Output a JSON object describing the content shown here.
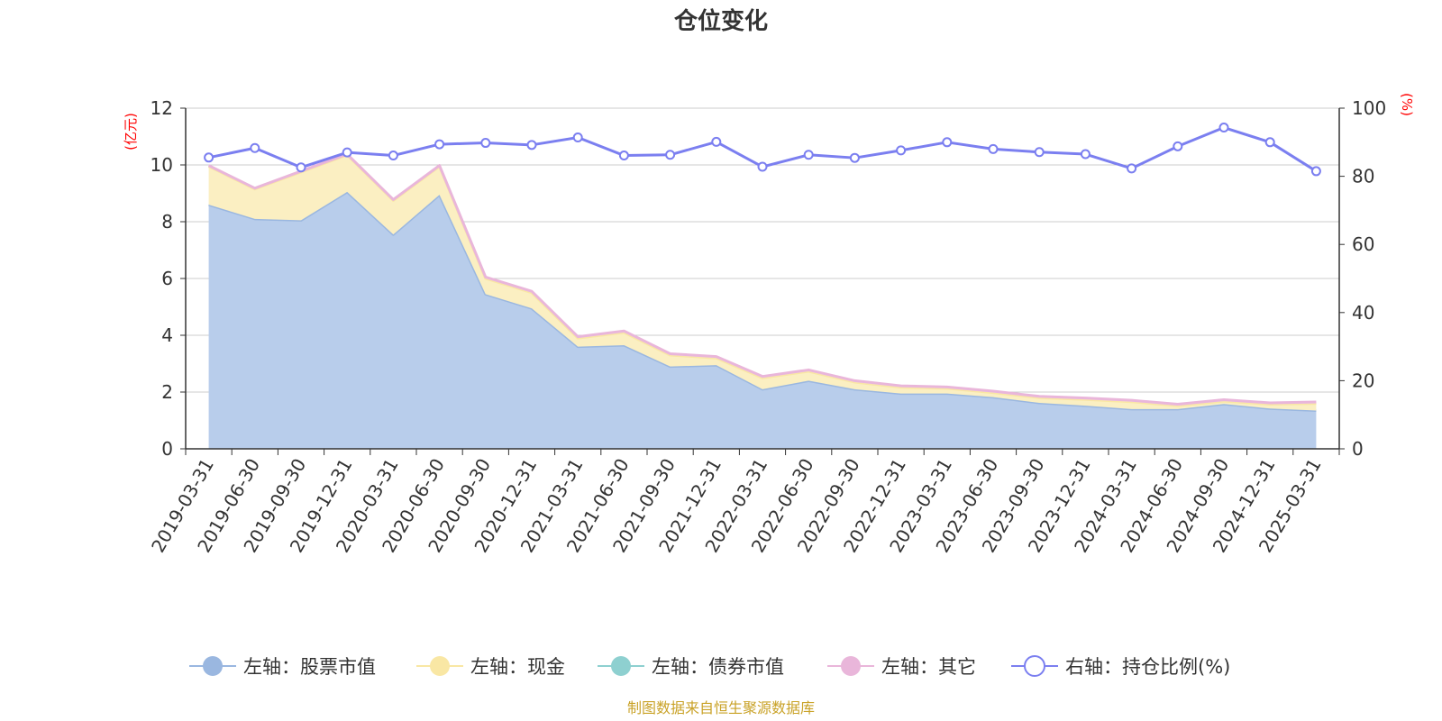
{
  "chart_data": {
    "type": "area",
    "title": "仓位变化",
    "left_unit": "(亿元)",
    "right_unit": "(%)",
    "x": [
      "2019-03-31",
      "2019-06-30",
      "2019-09-30",
      "2019-12-31",
      "2020-03-31",
      "2020-06-30",
      "2020-09-30",
      "2020-12-31",
      "2021-03-31",
      "2021-06-30",
      "2021-09-30",
      "2021-12-31",
      "2022-03-31",
      "2022-06-30",
      "2022-09-30",
      "2022-12-31",
      "2023-03-31",
      "2023-06-30",
      "2023-09-30",
      "2023-12-31",
      "2024-03-31",
      "2024-06-30",
      "2024-09-30",
      "2024-12-31",
      "2025-03-31"
    ],
    "left_ylim": [
      0,
      12
    ],
    "left_ticks": [
      0,
      2,
      4,
      6,
      8,
      10,
      12
    ],
    "right_ylim": [
      0,
      100
    ],
    "right_ticks": [
      0,
      20,
      40,
      60,
      80,
      100
    ],
    "grid": true,
    "legend_position": "bottom",
    "series": [
      {
        "name": "左轴：股票市值",
        "axis": "left",
        "stack": true,
        "color": "#9ab7e0",
        "fill": "#b8cdeb",
        "values": [
          8.6,
          8.1,
          8.05,
          9.05,
          7.55,
          8.95,
          5.45,
          4.95,
          3.6,
          3.65,
          2.9,
          2.95,
          2.1,
          2.4,
          2.1,
          1.95,
          1.95,
          1.82,
          1.62,
          1.52,
          1.4,
          1.4,
          1.58,
          1.42,
          1.35
        ]
      },
      {
        "name": "左轴：现金",
        "axis": "left",
        "stack": true,
        "color": "#f9e7a4",
        "fill": "#fbefc2",
        "values": [
          1.35,
          1.05,
          1.7,
          1.3,
          1.2,
          1.0,
          0.55,
          0.55,
          0.3,
          0.45,
          0.4,
          0.25,
          0.4,
          0.33,
          0.25,
          0.22,
          0.18,
          0.16,
          0.18,
          0.22,
          0.26,
          0.12,
          0.1,
          0.15,
          0.25
        ]
      },
      {
        "name": "左轴：债券市值",
        "axis": "left",
        "stack": true,
        "color": "#8ed0d0",
        "fill": "#b3e0e0",
        "values": [
          0,
          0,
          0,
          0,
          0,
          0,
          0,
          0,
          0,
          0,
          0,
          0,
          0,
          0,
          0,
          0,
          0,
          0,
          0,
          0,
          0,
          0,
          0,
          0,
          0
        ]
      },
      {
        "name": "左轴：其它",
        "axis": "left",
        "stack": true,
        "color": "#e9b6da",
        "fill": "#f2d3e8",
        "values": [
          0.03,
          0.03,
          0.03,
          0.03,
          0.03,
          0.03,
          0.05,
          0.05,
          0.05,
          0.05,
          0.05,
          0.05,
          0.05,
          0.05,
          0.05,
          0.05,
          0.05,
          0.05,
          0.05,
          0.05,
          0.05,
          0.05,
          0.05,
          0.05,
          0.05
        ]
      },
      {
        "name": "右轴：持仓比例(%)",
        "axis": "right",
        "stack": false,
        "color": "#7b7ff0",
        "values": [
          85.5,
          88.3,
          82.6,
          87.0,
          86.1,
          89.4,
          89.8,
          89.2,
          91.4,
          86.1,
          86.3,
          90.1,
          82.8,
          86.3,
          85.4,
          87.6,
          90.0,
          88.0,
          87.1,
          86.5,
          82.3,
          88.8,
          94.3,
          90.0,
          81.5
        ]
      }
    ],
    "source_note": "制图数据来自恒生聚源数据库"
  }
}
